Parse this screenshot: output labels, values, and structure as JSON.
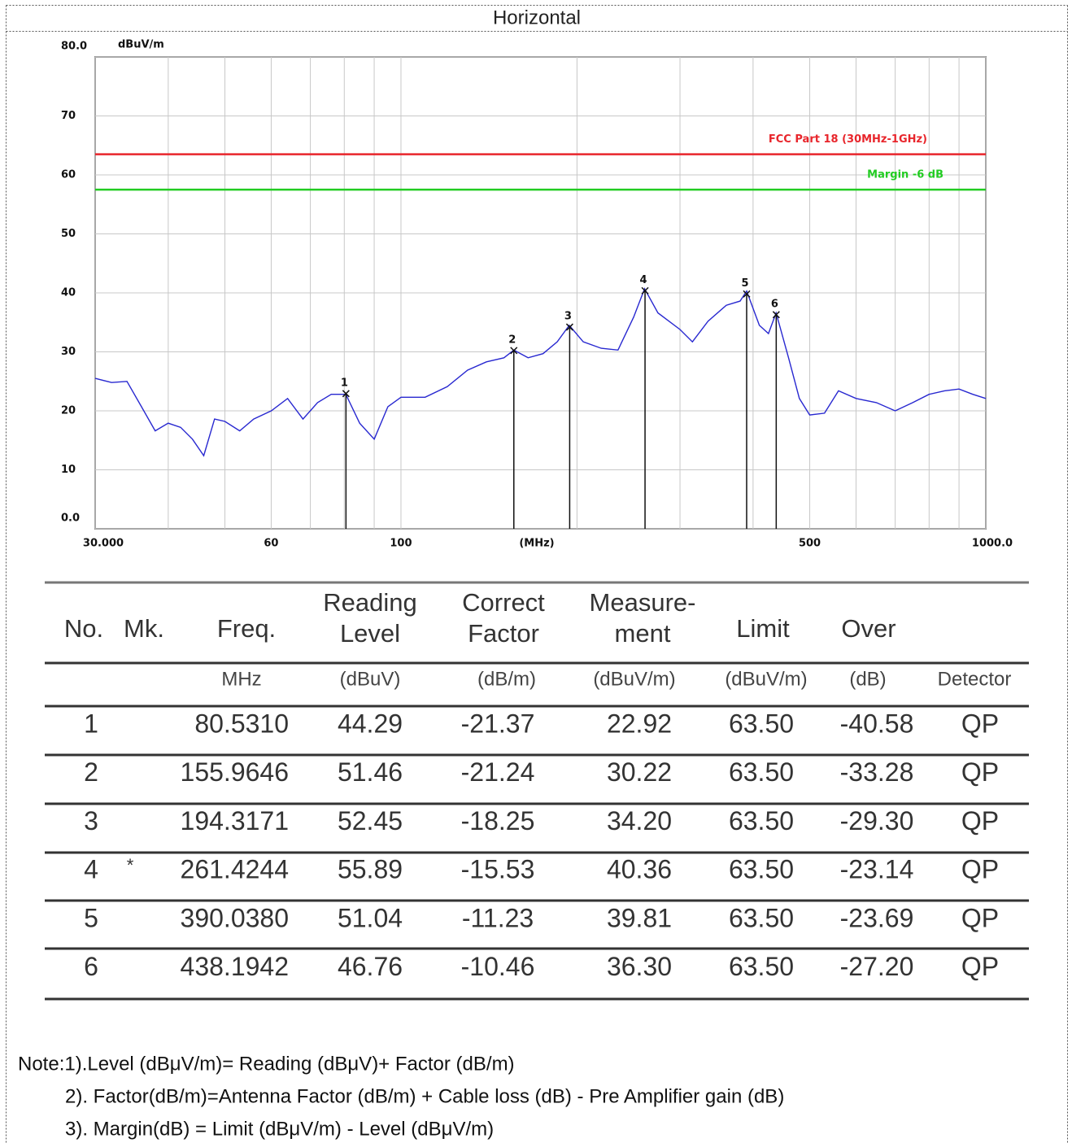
{
  "header": {
    "title": "Horizontal"
  },
  "chart_data": {
    "type": "line",
    "log_x": true,
    "grid": true,
    "y_label": "dBuV/m",
    "x_label": "(MHz)",
    "xlim": [
      30,
      1000
    ],
    "ylim": [
      0,
      80
    ],
    "xticks": [
      {
        "value": 30,
        "label": "30.000"
      },
      60,
      100,
      500,
      {
        "value": 1000,
        "label": "1000.0"
      }
    ],
    "xgrid": [
      40,
      50,
      70,
      80,
      90,
      200,
      300,
      400,
      600,
      700,
      800,
      900
    ],
    "yticks": [
      {
        "value": 0,
        "label": "0.0"
      },
      10,
      20,
      30,
      40,
      50,
      60,
      70,
      {
        "value": 80,
        "label": "80.0"
      }
    ],
    "hlines": [
      {
        "label": "FCC Part 18 (30MHz-1GHz)",
        "value": 63.5,
        "color": "#e8252b"
      },
      {
        "label": "Margin -6 dB",
        "value": 57.5,
        "color": "#22cc22"
      }
    ],
    "x": [
      30,
      32,
      34,
      36,
      38,
      40,
      42,
      44,
      46,
      48,
      50,
      53,
      56,
      60,
      64,
      68,
      72,
      76,
      80.5,
      85,
      90,
      95,
      100,
      110,
      120,
      130,
      140,
      150,
      156,
      165,
      175,
      185,
      194,
      205,
      220,
      235,
      250,
      261,
      275,
      300,
      315,
      335,
      360,
      380,
      390,
      410,
      425,
      438,
      460,
      480,
      500,
      530,
      560,
      600,
      650,
      700,
      750,
      800,
      850,
      900,
      950,
      1000
    ],
    "series": [
      {
        "color": "#2828d0",
        "values": [
          25.5,
          24.8,
          25,
          20.7,
          16.6,
          17.9,
          17.2,
          15.2,
          12.4,
          18.6,
          18.2,
          16.6,
          18.6,
          20,
          22.1,
          18.6,
          21.4,
          22.8,
          22.8,
          17.9,
          15.2,
          20.7,
          22.3,
          22.3,
          24.1,
          26.9,
          28.3,
          29,
          30.3,
          29,
          29.7,
          31.7,
          34.5,
          31.7,
          30.6,
          30.3,
          35.9,
          40.7,
          36.6,
          33.8,
          31.7,
          35.2,
          37.9,
          38.6,
          40.3,
          34.5,
          33.1,
          36.6,
          29,
          22.1,
          19.3,
          19.6,
          23.4,
          22.1,
          21.4,
          20,
          21.4,
          22.8,
          23.4,
          23.7,
          22.8,
          22.1
        ]
      }
    ]
  },
  "table": {
    "columns": [
      [
        "No."
      ],
      [
        "Mk."
      ],
      [
        "Freq."
      ],
      [
        "Reading",
        "Level"
      ],
      [
        "Correct",
        "Factor"
      ],
      [
        "Measure-",
        "ment"
      ],
      [
        "Limit"
      ],
      [
        "Over"
      ]
    ],
    "units": [
      "MHz",
      "(dBuV)",
      "(dB/m)",
      "(dBuV/m)",
      "(dBuV/m)",
      "(dB)",
      "Detector"
    ],
    "rows": [
      {
        "no": "1",
        "freq": "80.5310",
        "reading": "44.29",
        "factor": "-21.37",
        "measurement": "22.92",
        "limit": "63.50",
        "over": "-40.58",
        "detector": "QP"
      },
      {
        "no": "2",
        "freq": "155.9646",
        "reading": "51.46",
        "factor": "-21.24",
        "measurement": "30.22",
        "limit": "63.50",
        "over": "-33.28",
        "detector": "QP"
      },
      {
        "no": "3",
        "freq": "194.3171",
        "reading": "52.45",
        "factor": "-18.25",
        "measurement": "34.20",
        "limit": "63.50",
        "over": "-29.30",
        "detector": "QP"
      },
      {
        "no": "4",
        "mk": "*",
        "freq": "261.4244",
        "reading": "55.89",
        "factor": "-15.53",
        "measurement": "40.36",
        "limit": "63.50",
        "over": "-23.14",
        "detector": "QP"
      },
      {
        "no": "5",
        "freq": "390.0380",
        "reading": "51.04",
        "factor": "-11.23",
        "measurement": "39.81",
        "limit": "63.50",
        "over": "-23.69",
        "detector": "QP"
      },
      {
        "no": "6",
        "freq": "438.1942",
        "reading": "46.76",
        "factor": "-10.46",
        "measurement": "36.30",
        "limit": "63.50",
        "over": "-27.20",
        "detector": "QP"
      }
    ]
  },
  "notes": [
    "Note:1).Level (dBμV/m)= Reading (dBμV)+ Factor (dB/m)",
    "2). Factor(dB/m)=Antenna Factor (dB/m) + Cable loss (dB) - Pre Amplifier gain (dB)",
    "3). Margin(dB) = Limit (dBμV/m) - Level (dBμV/m)"
  ]
}
